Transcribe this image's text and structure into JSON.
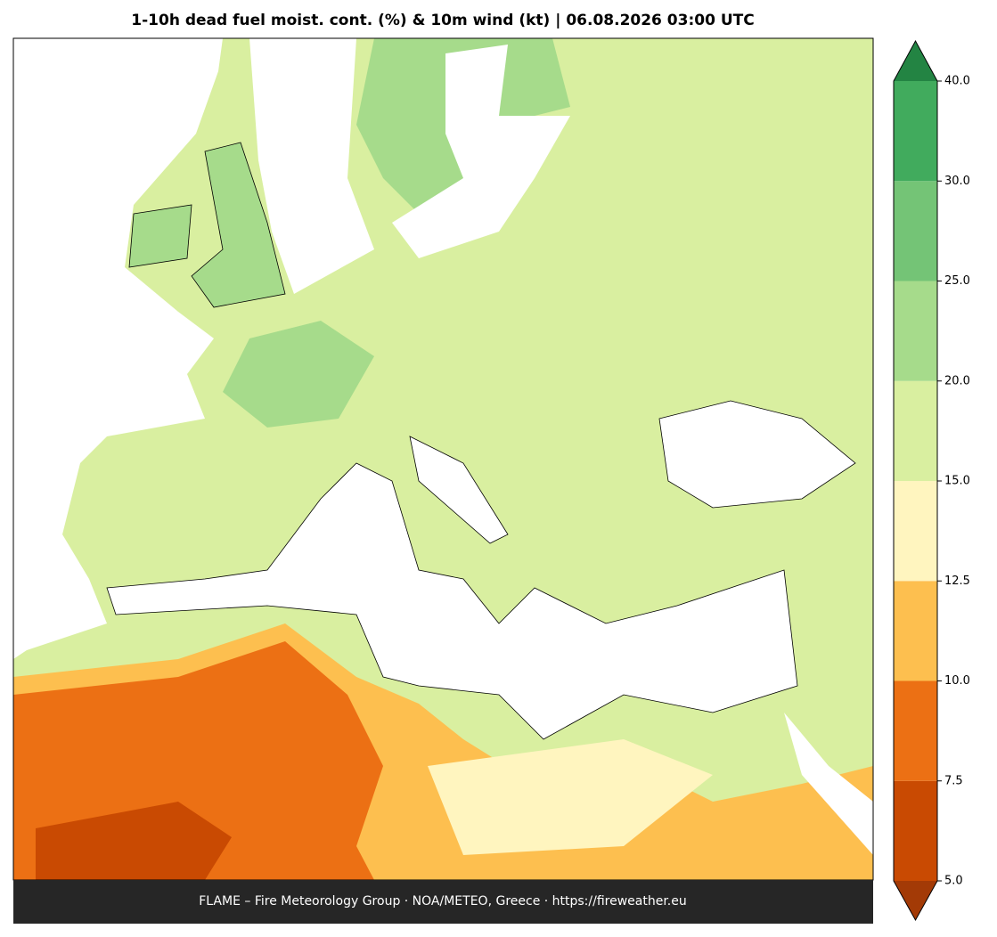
{
  "title": "1-10h dead fuel moist. cont. (%) & 10m wind (kt)  |  06.08.2026 03:00 UTC",
  "footer": "FLAME – Fire Meteorology Group · NOA/METEO, Greece · https://fireweather.eu",
  "colorbar": {
    "ticks": [
      {
        "value": 5,
        "label": "5.0"
      },
      7.5,
      {
        "value": 10,
        "label": "10.0"
      },
      12.5,
      {
        "value": 15,
        "label": "15.0"
      },
      {
        "value": 20,
        "label": "20.0"
      },
      {
        "value": 25,
        "label": "25.0"
      },
      {
        "value": 30,
        "label": "30.0"
      },
      {
        "value": 40,
        "label": "40.0"
      }
    ],
    "colors": [
      "#c94a02",
      "#ec7014",
      "#fdbf4f",
      "#fff5bf",
      "#d9efa0",
      "#a6db8b",
      "#74c476",
      "#41ab5d"
    ],
    "under_color": "#a33a06",
    "over_color": "#238443"
  }
}
